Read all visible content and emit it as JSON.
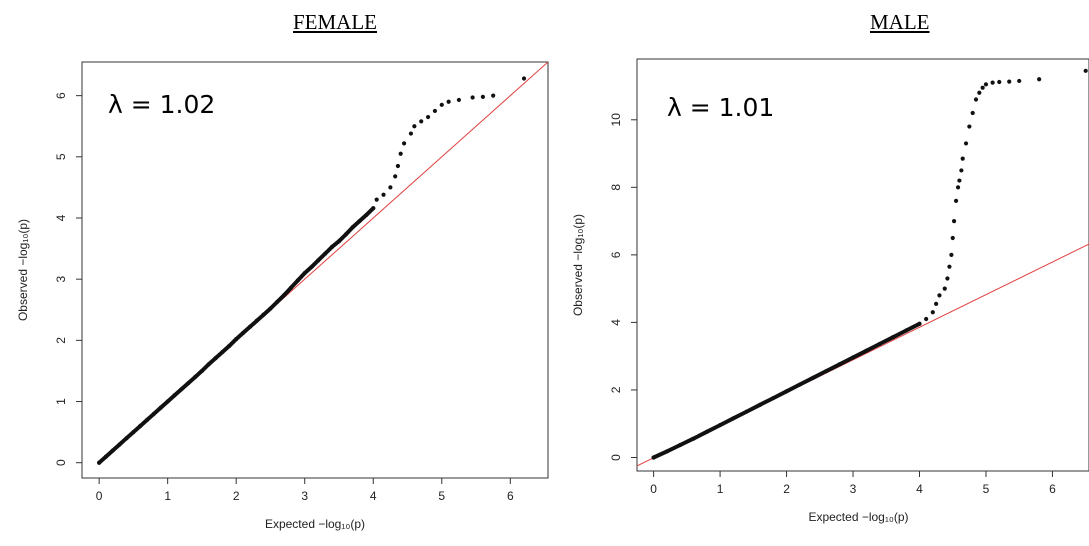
{
  "chart_data": [
    {
      "type": "scatter",
      "title": "FEMALE",
      "xlabel": "Expected  −log₁₀(p)",
      "ylabel": "Observed  −log₁₀(p)",
      "xlim": [
        -0.25,
        6.55
      ],
      "ylim": [
        -0.25,
        6.55
      ],
      "x_ticks": [
        "0",
        "1",
        "2",
        "3",
        "4",
        "5",
        "6"
      ],
      "y_ticks": [
        "0",
        "1",
        "2",
        "3",
        "4",
        "5",
        "6"
      ],
      "annotation": "λ = 1.02",
      "reference_line": {
        "from": [
          0,
          0
        ],
        "to": [
          6.55,
          6.55
        ],
        "color": "#e04040"
      },
      "point_color": "#111111",
      "series": [
        {
          "points": [
            [
              0,
              0
            ],
            [
              0.1,
              0.1
            ],
            [
              0.2,
              0.2
            ],
            [
              0.3,
              0.3
            ],
            [
              0.4,
              0.4
            ],
            [
              0.5,
              0.5
            ],
            [
              0.6,
              0.6
            ],
            [
              0.7,
              0.7
            ],
            [
              0.8,
              0.8
            ],
            [
              0.9,
              0.9
            ],
            [
              1.0,
              1.0
            ],
            [
              1.1,
              1.1
            ],
            [
              1.2,
              1.2
            ],
            [
              1.3,
              1.3
            ],
            [
              1.4,
              1.4
            ],
            [
              1.5,
              1.5
            ],
            [
              1.6,
              1.61
            ],
            [
              1.7,
              1.71
            ],
            [
              1.8,
              1.81
            ],
            [
              1.9,
              1.91
            ],
            [
              2.0,
              2.02
            ],
            [
              2.1,
              2.12
            ],
            [
              2.2,
              2.22
            ],
            [
              2.3,
              2.32
            ],
            [
              2.4,
              2.42
            ],
            [
              2.5,
              2.52
            ],
            [
              2.6,
              2.63
            ],
            [
              2.7,
              2.74
            ],
            [
              2.8,
              2.86
            ],
            [
              2.9,
              2.98
            ],
            [
              3.0,
              3.1
            ],
            [
              3.1,
              3.2
            ],
            [
              3.2,
              3.31
            ],
            [
              3.3,
              3.42
            ],
            [
              3.4,
              3.53
            ],
            [
              3.5,
              3.62
            ],
            [
              3.6,
              3.73
            ],
            [
              3.7,
              3.85
            ],
            [
              3.8,
              3.95
            ],
            [
              3.9,
              4.05
            ],
            [
              4.0,
              4.16
            ],
            [
              4.05,
              4.3
            ],
            [
              4.15,
              4.38
            ],
            [
              4.25,
              4.5
            ],
            [
              4.32,
              4.68
            ],
            [
              4.36,
              4.85
            ],
            [
              4.4,
              5.05
            ],
            [
              4.45,
              5.22
            ],
            [
              4.55,
              5.38
            ],
            [
              4.6,
              5.5
            ],
            [
              4.7,
              5.58
            ],
            [
              4.8,
              5.65
            ],
            [
              4.9,
              5.75
            ],
            [
              5.0,
              5.85
            ],
            [
              5.1,
              5.9
            ],
            [
              5.25,
              5.93
            ],
            [
              5.45,
              5.97
            ],
            [
              5.6,
              5.98
            ],
            [
              5.75,
              6.0
            ],
            [
              6.2,
              6.28
            ]
          ]
        }
      ]
    },
    {
      "type": "scatter",
      "title": "MALE",
      "xlabel": "Expected  −log₁₀(p)",
      "ylabel": "Observed  −log₁₀(p)",
      "xlim": [
        -0.25,
        6.55
      ],
      "ylim": [
        -0.4,
        11.8
      ],
      "x_ticks": [
        "0",
        "1",
        "2",
        "3",
        "4",
        "5",
        "6"
      ],
      "y_ticks": [
        "0",
        "2",
        "4",
        "6",
        "8",
        "10"
      ],
      "annotation": "λ = 1.01",
      "reference_line": {
        "from": [
          -0.25,
          -0.25
        ],
        "to": [
          6.55,
          6.32
        ],
        "color": "#e04040"
      },
      "point_color": "#111111",
      "series": [
        {
          "points": [
            [
              0,
              0
            ],
            [
              0.2,
              0.18
            ],
            [
              0.4,
              0.37
            ],
            [
              0.6,
              0.56
            ],
            [
              0.8,
              0.76
            ],
            [
              1.0,
              0.96
            ],
            [
              1.2,
              1.16
            ],
            [
              1.4,
              1.36
            ],
            [
              1.6,
              1.56
            ],
            [
              1.8,
              1.76
            ],
            [
              2.0,
              1.96
            ],
            [
              2.2,
              2.16
            ],
            [
              2.4,
              2.36
            ],
            [
              2.6,
              2.56
            ],
            [
              2.8,
              2.76
            ],
            [
              3.0,
              2.96
            ],
            [
              3.2,
              3.16
            ],
            [
              3.4,
              3.36
            ],
            [
              3.6,
              3.56
            ],
            [
              3.8,
              3.76
            ],
            [
              4.0,
              3.96
            ],
            [
              4.1,
              4.1
            ],
            [
              4.2,
              4.3
            ],
            [
              4.25,
              4.55
            ],
            [
              4.3,
              4.8
            ],
            [
              4.38,
              5.0
            ],
            [
              4.42,
              5.3
            ],
            [
              4.45,
              5.65
            ],
            [
              4.48,
              6.0
            ],
            [
              4.5,
              6.5
            ],
            [
              4.52,
              7.0
            ],
            [
              4.55,
              7.6
            ],
            [
              4.58,
              8.0
            ],
            [
              4.6,
              8.2
            ],
            [
              4.63,
              8.5
            ],
            [
              4.65,
              8.85
            ],
            [
              4.7,
              9.3
            ],
            [
              4.75,
              9.8
            ],
            [
              4.8,
              10.2
            ],
            [
              4.85,
              10.6
            ],
            [
              4.9,
              10.8
            ],
            [
              4.95,
              10.95
            ],
            [
              5.0,
              11.05
            ],
            [
              5.1,
              11.1
            ],
            [
              5.2,
              11.12
            ],
            [
              5.35,
              11.13
            ],
            [
              5.5,
              11.15
            ],
            [
              5.8,
              11.2
            ],
            [
              6.5,
              11.45
            ]
          ]
        }
      ]
    }
  ]
}
